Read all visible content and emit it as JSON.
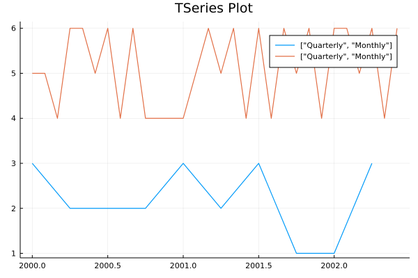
{
  "chart_data": {
    "type": "line",
    "title": "TSeries Plot",
    "xlabel": "",
    "ylabel": "",
    "xlim": [
      1999.92,
      2002.5
    ],
    "ylim": [
      0.9,
      6.15
    ],
    "x_ticks": [
      2000.0,
      2000.5,
      2001.0,
      2001.5,
      2002.0
    ],
    "x_tick_labels": [
      "2000.0",
      "2000.5",
      "2001.0",
      "2001.5",
      "2002.0"
    ],
    "y_ticks": [
      1,
      2,
      3,
      4,
      5,
      6
    ],
    "y_tick_labels": [
      "1",
      "2",
      "3",
      "4",
      "5",
      "6"
    ],
    "grid": true,
    "legend_position": "top-right",
    "series": [
      {
        "name": "[\"Quarterly\", \"Monthly\"]",
        "color": "#009af9",
        "x": [
          2000.0,
          2000.25,
          2000.5,
          2000.75,
          2001.0,
          2001.25,
          2001.5,
          2001.75,
          2002.0,
          2002.25
        ],
        "y": [
          3,
          2,
          2,
          2,
          3,
          2,
          3,
          1,
          1,
          3
        ]
      },
      {
        "name": "[\"Quarterly\", \"Monthly\"]",
        "color": "#e26f46",
        "x": [
          2000.0,
          2000.0833,
          2000.1667,
          2000.25,
          2000.3333,
          2000.4167,
          2000.5,
          2000.5833,
          2000.6667,
          2000.75,
          2000.8333,
          2000.9167,
          2001.0,
          2001.0833,
          2001.1667,
          2001.25,
          2001.3333,
          2001.4167,
          2001.5,
          2001.5833,
          2001.6667,
          2001.75,
          2001.8333,
          2001.9167,
          2002.0,
          2002.0833,
          2002.1667,
          2002.25,
          2002.3333,
          2002.4167
        ],
        "y": [
          5,
          5,
          4,
          6,
          6,
          5,
          6,
          4,
          6,
          4,
          4,
          4,
          4,
          5,
          6,
          5,
          6,
          4,
          6,
          4,
          6,
          5,
          6,
          4,
          6,
          6,
          5,
          6,
          4,
          6
        ]
      }
    ]
  }
}
